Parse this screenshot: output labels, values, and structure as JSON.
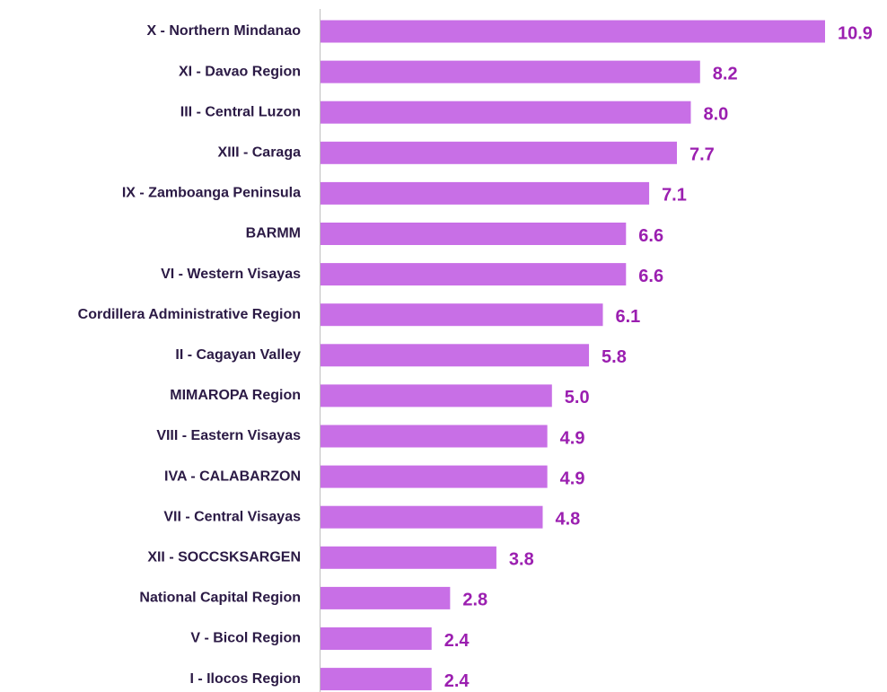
{
  "chart_data": {
    "type": "bar",
    "orientation": "horizontal",
    "categories": [
      "X - Northern Mindanao",
      "XI - Davao Region",
      "III - Central Luzon",
      "XIII - Caraga",
      "IX - Zamboanga Peninsula",
      "BARMM",
      "VI - Western Visayas",
      "Cordillera Administrative Region",
      "II - Cagayan Valley",
      "MIMAROPA Region",
      "VIII - Eastern Visayas",
      "IVA - CALABARZON",
      "VII - Central Visayas",
      "XII - SOCCSKSARGEN",
      "National Capital Region",
      "V - Bicol Region",
      "I - Ilocos Region"
    ],
    "values": [
      10.9,
      8.2,
      8.0,
      7.7,
      7.1,
      6.6,
      6.6,
      6.1,
      5.8,
      5.0,
      4.9,
      4.9,
      4.8,
      3.8,
      2.8,
      2.4,
      2.4
    ],
    "value_labels": [
      "10.9",
      "8.2",
      "8.0",
      "7.7",
      "7.1",
      "6.6",
      "6.6",
      "6.1",
      "5.8",
      "5.0",
      "4.9",
      "4.9",
      "4.8",
      "3.8",
      "2.8",
      "2.4",
      "2.4"
    ],
    "color": "#c86fe6",
    "label_color": "#9b1fb0"
  }
}
